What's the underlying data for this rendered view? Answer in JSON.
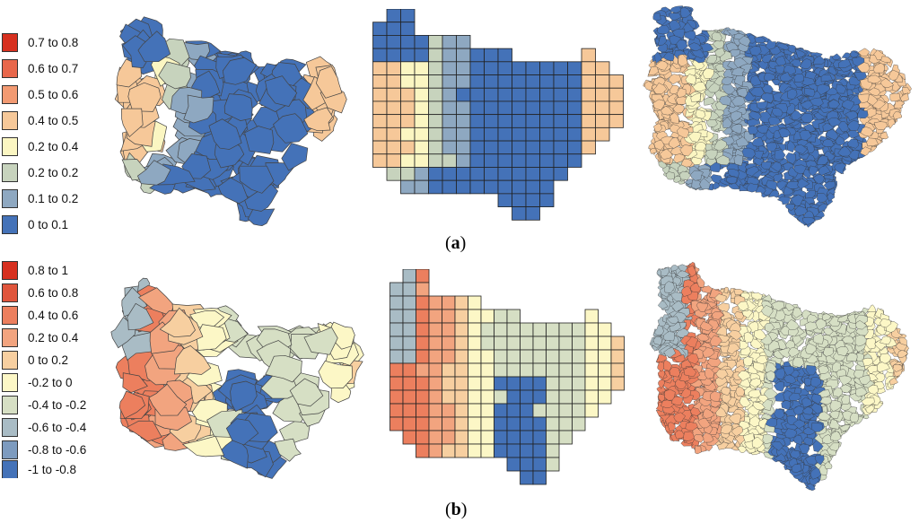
{
  "panels": [
    {
      "caption_open": "(",
      "caption_letter": "a",
      "caption_close": ")",
      "legend": [
        {
          "label": "0.7 to 0.8",
          "color": "#d7301f"
        },
        {
          "label": "0.6 to 0.7",
          "color": "#e8674b"
        },
        {
          "label": "0.5 to 0.6",
          "color": "#f29a72"
        },
        {
          "label": "0.4 to 0.5",
          "color": "#f6c899"
        },
        {
          "label": "0.2 to 0.4",
          "color": "#fbf6c2"
        },
        {
          "label": "0.2 to 0.2",
          "color": "#c7d3bd"
        },
        {
          "label": "0.1 to 0.2",
          "color": "#8ea8c1"
        },
        {
          "label": "0 to 0.1",
          "color": "#4472b8"
        }
      ],
      "maps": [
        "cantons",
        "grid",
        "communes"
      ]
    },
    {
      "caption_open": "(",
      "caption_letter": "b",
      "caption_close": ")",
      "legend": [
        {
          "label": "0.8 to 1",
          "color": "#d7301f"
        },
        {
          "label": "0.6 to 0.8",
          "color": "#e0553c"
        },
        {
          "label": "0.4 to 0.6",
          "color": "#ec7f5e"
        },
        {
          "label": "0.2 to 0.4",
          "color": "#f2a47f"
        },
        {
          "label": "0 to 0.2",
          "color": "#f7cfa0"
        },
        {
          "label": "-0.2 to 0",
          "color": "#fcf7c6"
        },
        {
          "label": "-0.4 to -0.2",
          "color": "#d6dfc4"
        },
        {
          "label": "-0.6 to -0.4",
          "color": "#a9bcc5"
        },
        {
          "label": "-0.8 to -0.6",
          "color": "#7d9bbf"
        },
        {
          "label": "-1 to -0.8",
          "color": "#4472b8"
        }
      ],
      "maps": [
        "cantons",
        "grid",
        "communes"
      ]
    }
  ]
}
